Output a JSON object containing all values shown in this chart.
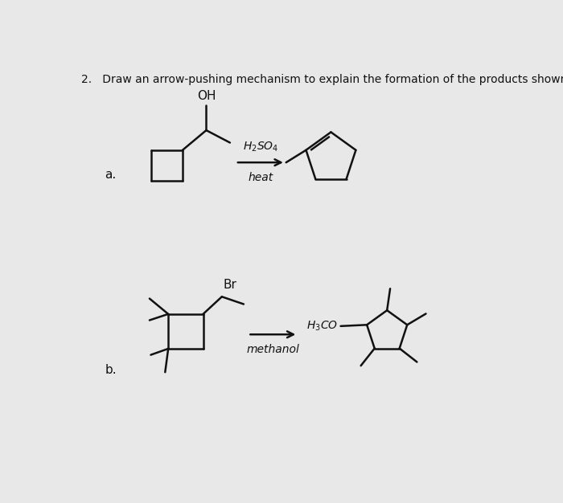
{
  "title": "2.   Draw an arrow-pushing mechanism to explain the formation of the products shown.",
  "bg_color": "#e8e8e8",
  "line_color": "#111111",
  "lw": 1.8,
  "label_a": "a.",
  "label_b": "b.",
  "reagent_a_top": "$H_2SO_4$",
  "reagent_a_bot": "heat",
  "reagent_b_bot": "methanol"
}
